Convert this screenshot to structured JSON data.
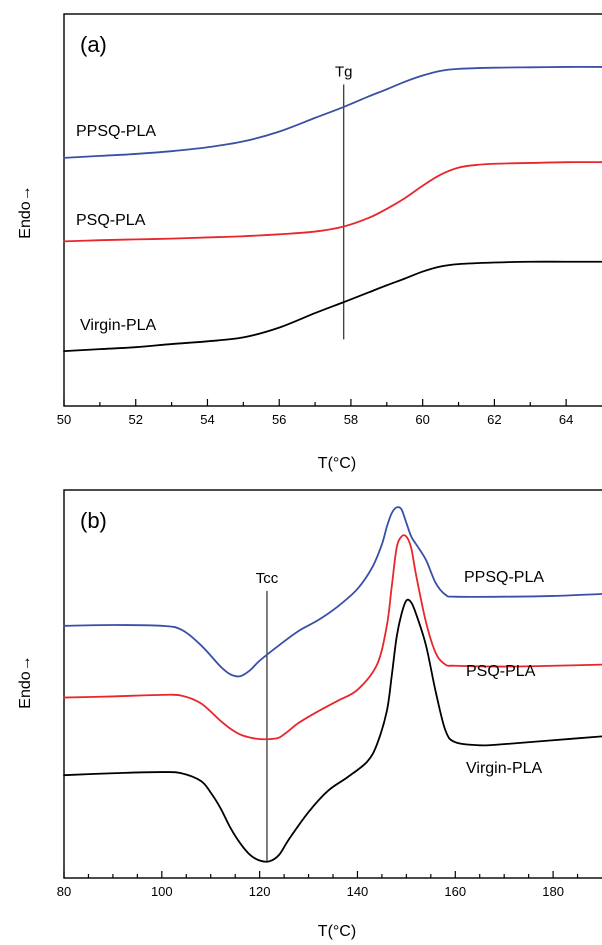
{
  "chart_data": [
    {
      "type": "line",
      "panel_label": "(a)",
      "xlabel": "T(°C)",
      "ylabel": "Endo→",
      "xlim": [
        50,
        65
      ],
      "ylim": [
        0,
        1
      ],
      "xticks": [
        50,
        52,
        54,
        56,
        58,
        60,
        62,
        64
      ],
      "minor_xtick_step": 1,
      "grid": false,
      "marker": {
        "label": "Tg",
        "x": 57.8,
        "y_from": 0.17,
        "y_to": 0.82
      },
      "series": [
        {
          "name": "PPSQ-PLA",
          "color": "#3a4fa6",
          "x": [
            50,
            51,
            52,
            53,
            54,
            55,
            56,
            57,
            57.8,
            58.5,
            59,
            59.5,
            60,
            60.5,
            61,
            62,
            63,
            64,
            65
          ],
          "y": [
            0.633,
            0.638,
            0.643,
            0.65,
            0.66,
            0.675,
            0.7,
            0.735,
            0.763,
            0.79,
            0.808,
            0.827,
            0.843,
            0.855,
            0.86,
            0.863,
            0.864,
            0.865,
            0.865
          ]
        },
        {
          "name": "PSQ-PLA",
          "color": "#e8262b",
          "x": [
            50,
            51,
            52,
            53,
            54,
            55,
            56,
            57,
            57.8,
            58.5,
            59,
            59.5,
            60,
            60.5,
            61,
            61.5,
            62,
            63,
            64,
            65
          ],
          "y": [
            0.42,
            0.423,
            0.425,
            0.427,
            0.43,
            0.433,
            0.438,
            0.445,
            0.458,
            0.48,
            0.503,
            0.53,
            0.562,
            0.59,
            0.608,
            0.615,
            0.618,
            0.62,
            0.622,
            0.622
          ]
        },
        {
          "name": "Virgin-PLA",
          "color": "#000000",
          "x": [
            50,
            51,
            52,
            53,
            54,
            55,
            56,
            57,
            57.8,
            58.5,
            59,
            59.5,
            60,
            60.5,
            61,
            62,
            63,
            64,
            65
          ],
          "y": [
            0.14,
            0.145,
            0.15,
            0.158,
            0.165,
            0.175,
            0.2,
            0.237,
            0.265,
            0.29,
            0.308,
            0.325,
            0.343,
            0.356,
            0.362,
            0.366,
            0.368,
            0.368,
            0.368
          ]
        }
      ]
    },
    {
      "type": "line",
      "panel_label": "(b)",
      "xlabel": "T(°C)",
      "ylabel": "Endo→",
      "xlim": [
        80,
        190
      ],
      "ylim": [
        0,
        1
      ],
      "xticks": [
        80,
        100,
        120,
        140,
        160,
        180
      ],
      "minor_xtick_step": 5,
      "grid": false,
      "marker": {
        "label": "Tcc",
        "x": 121.5,
        "y_from": 0.04,
        "y_to": 0.74
      },
      "series": [
        {
          "name": "PPSQ-PLA",
          "color": "#3a4fa6",
          "x": [
            80,
            90,
            100,
            104,
            108,
            112,
            114,
            116,
            118,
            120,
            124,
            128,
            132,
            136,
            140,
            143,
            145,
            146,
            147,
            148,
            149,
            150,
            151,
            152,
            154,
            156,
            158,
            160,
            170,
            180,
            190
          ],
          "y": [
            0.65,
            0.652,
            0.65,
            0.64,
            0.6,
            0.545,
            0.525,
            0.52,
            0.535,
            0.56,
            0.6,
            0.637,
            0.665,
            0.7,
            0.745,
            0.8,
            0.86,
            0.905,
            0.94,
            0.955,
            0.95,
            0.915,
            0.88,
            0.86,
            0.82,
            0.76,
            0.73,
            0.725,
            0.725,
            0.727,
            0.732
          ]
        },
        {
          "name": "PSQ-PLA",
          "color": "#e8262b",
          "x": [
            80,
            90,
            100,
            104,
            108,
            112,
            114,
            116,
            118,
            120,
            122,
            124,
            126,
            128,
            132,
            136,
            140,
            144,
            146,
            147,
            148,
            149,
            150,
            151,
            152,
            154,
            156,
            158,
            160,
            170,
            180,
            190
          ],
          "y": [
            0.465,
            0.468,
            0.472,
            0.47,
            0.45,
            0.405,
            0.385,
            0.37,
            0.362,
            0.358,
            0.358,
            0.362,
            0.38,
            0.4,
            0.43,
            0.457,
            0.485,
            0.55,
            0.65,
            0.75,
            0.85,
            0.88,
            0.88,
            0.85,
            0.78,
            0.66,
            0.58,
            0.55,
            0.547,
            0.545,
            0.547,
            0.55
          ]
        },
        {
          "name": "Virgin-PLA",
          "color": "#000000",
          "x": [
            80,
            90,
            100,
            104,
            108,
            110,
            112,
            114,
            116,
            118,
            120,
            122,
            124,
            126,
            130,
            134,
            138,
            142,
            144,
            146,
            147,
            148,
            149,
            150,
            151,
            152,
            154,
            156,
            158,
            160,
            165,
            170,
            180,
            190
          ],
          "y": [
            0.265,
            0.27,
            0.273,
            0.27,
            0.25,
            0.22,
            0.18,
            0.13,
            0.09,
            0.06,
            0.045,
            0.043,
            0.06,
            0.1,
            0.17,
            0.225,
            0.26,
            0.3,
            0.345,
            0.43,
            0.52,
            0.62,
            0.68,
            0.715,
            0.71,
            0.68,
            0.6,
            0.48,
            0.38,
            0.35,
            0.342,
            0.345,
            0.355,
            0.365
          ]
        }
      ]
    }
  ]
}
